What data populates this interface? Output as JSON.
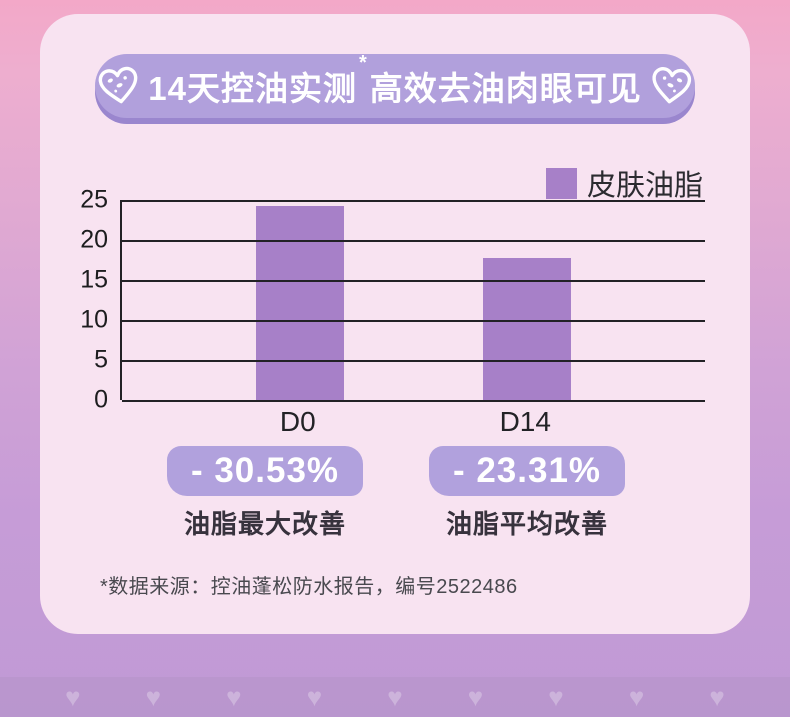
{
  "banner": {
    "title_part1": "14天控油实测",
    "asterisk": "*",
    "title_part2": "高效去油肉眼可见"
  },
  "legend": {
    "label": "皮肤油脂",
    "swatch_color": "#a780c8"
  },
  "chart_data": {
    "type": "bar",
    "title": "",
    "categories": [
      "D0",
      "D14"
    ],
    "series": [
      {
        "name": "皮肤油脂",
        "values": [
          24.2,
          17.7
        ]
      }
    ],
    "xlabel": "",
    "ylabel": "",
    "ylim": [
      0,
      25
    ],
    "yticks": [
      0,
      5,
      10,
      15,
      20,
      25
    ],
    "grid": true,
    "legend_position": "top-right",
    "bar_color": "#a780c8"
  },
  "results": [
    {
      "value": "- 30.53%",
      "label": "油脂最大改善"
    },
    {
      "value": "- 23.31%",
      "label": "油脂平均改善"
    }
  ],
  "footnote": "*数据来源：控油蓬松防水报告，编号2522486",
  "colors": {
    "background_top": "#f3a8c8",
    "background_bottom": "#c09ad5",
    "card": "#f8e3f1",
    "banner_pill": "#b1a0dc",
    "banner_pill_shadow": "#9a86ce",
    "bar": "#a780c8",
    "badge": "#b1a1dd",
    "text_dark": "#222226"
  }
}
